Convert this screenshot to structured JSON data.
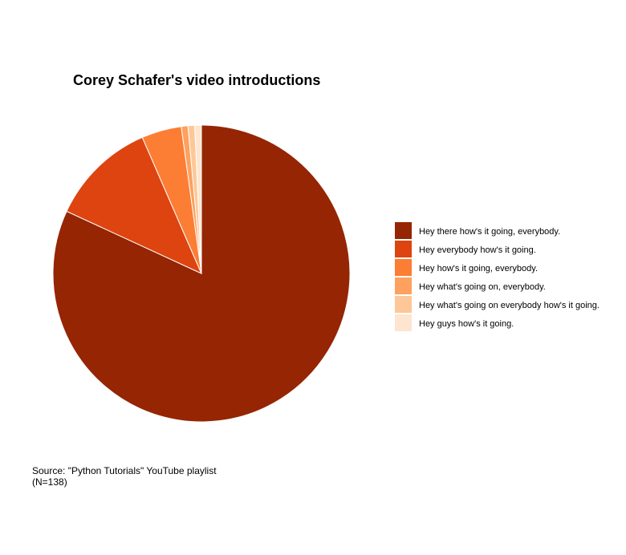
{
  "chart_data": {
    "type": "pie",
    "title": "Corey Schafer's video introductions",
    "categories": [
      "Hey there how's it going, everybody.",
      "Hey everybody how's it going.",
      "Hey how's it going, everybody.",
      "Hey what's going on, everybody.",
      "Hey what's going on everybody how's it going.",
      "Hey guys how's it going."
    ],
    "values": [
      113,
      16,
      6,
      1,
      1,
      1
    ],
    "colors": [
      "#952503",
      "#dd4410",
      "#fc7d34",
      "#fea15f",
      "#fdc797",
      "#fde5cf"
    ],
    "legend": "right",
    "caption_line1": "Source: \"Python Tutorials\" YouTube playlist",
    "caption_line2": "(N=138)"
  }
}
